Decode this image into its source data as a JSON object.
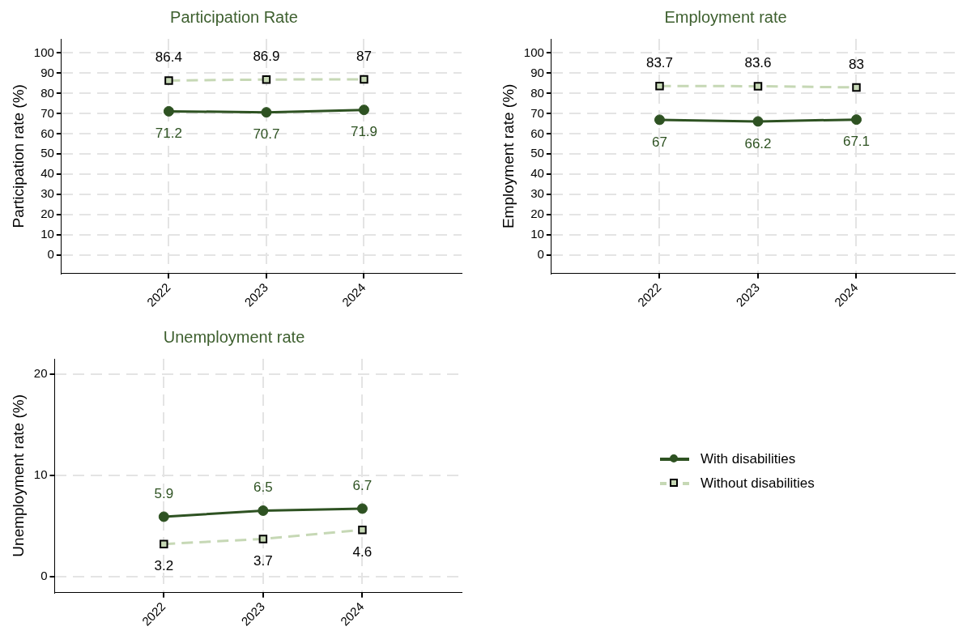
{
  "chart_data": [
    {
      "type": "line",
      "title": "Participation Rate",
      "ylabel": "Participation rate (%)",
      "x": [
        2022,
        2023,
        2024
      ],
      "xlim": [
        2020.9,
        2025
      ],
      "xticks": [
        2022,
        2023,
        2024
      ],
      "ylim": [
        -9,
        107
      ],
      "yticks": [
        0,
        10,
        20,
        30,
        40,
        50,
        60,
        70,
        80,
        90,
        100
      ],
      "grid": true,
      "data_labels": true,
      "legend": "bottom right",
      "series": [
        {
          "name": "With disabilities",
          "color": "#2e5222",
          "values": [
            71.2,
            70.7,
            71.9
          ],
          "marker": "circle",
          "line_style": "solid"
        },
        {
          "name": "Without disabilities",
          "color": "#c6d8b5",
          "values": [
            86.4,
            86.9,
            87
          ],
          "marker": "square",
          "line_style": "dashed"
        }
      ]
    },
    {
      "type": "line",
      "title": "Employment rate",
      "ylabel": "Employment rate (%)",
      "x": [
        2022,
        2023,
        2024
      ],
      "xlim": [
        2020.9,
        2025
      ],
      "xticks": [
        2022,
        2023,
        2024
      ],
      "ylim": [
        -9,
        107
      ],
      "yticks": [
        0,
        10,
        20,
        30,
        40,
        50,
        60,
        70,
        80,
        90,
        100
      ],
      "grid": true,
      "data_labels": true,
      "series": [
        {
          "color": "#2e5222",
          "values": [
            67,
            66.2,
            67.1
          ],
          "marker": "circle",
          "line_style": "solid"
        },
        {
          "color": "#c6d8b5",
          "values": [
            83.7,
            83.6,
            83
          ],
          "marker": "square",
          "line_style": "dashed"
        }
      ]
    },
    {
      "type": "line",
      "title": "Unemployment rate",
      "ylabel": "Unemployment rate (%)",
      "x": [
        2022,
        2023,
        2024
      ],
      "xlim": [
        2020.9,
        2025
      ],
      "xticks": [
        2022,
        2023,
        2024
      ],
      "ylim": [
        -1.6,
        21.5
      ],
      "yticks": [
        0,
        10,
        20
      ],
      "grid": true,
      "data_labels": true,
      "series": [
        {
          "color": "#2e5222",
          "values": [
            5.9,
            6.5,
            6.7
          ],
          "marker": "circle",
          "line_style": "solid"
        },
        {
          "color": "#c6d8b5",
          "values": [
            3.2,
            3.7,
            4.6
          ],
          "marker": "square",
          "line_style": "dashed"
        }
      ]
    }
  ]
}
